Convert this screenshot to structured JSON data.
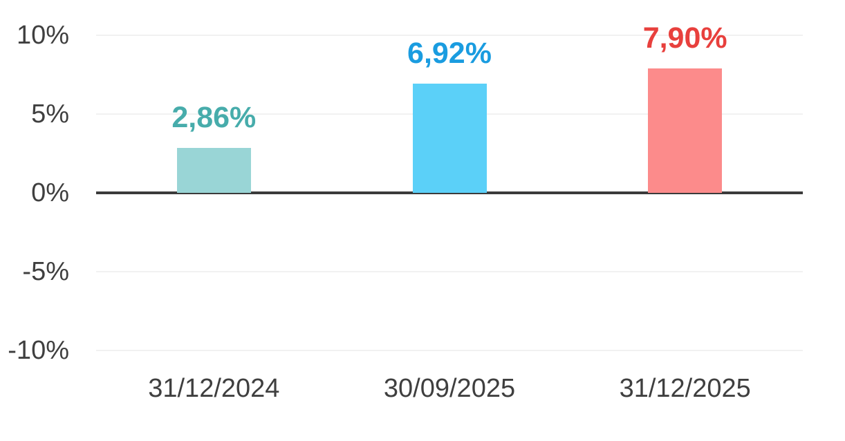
{
  "chart_data": {
    "type": "bar",
    "title": "",
    "xlabel": "",
    "ylabel": "",
    "categories": [
      "31/12/2024",
      "30/09/2025",
      "31/12/2025"
    ],
    "values": [
      2.86,
      6.92,
      7.9
    ],
    "value_labels": [
      "2,86%",
      "6,92%",
      "7,90%"
    ],
    "bar_colors": [
      "#99D5D6",
      "#5BD0F8",
      "#FC8B8B"
    ],
    "value_label_colors": [
      "#47ACAB",
      "#1A9CE0",
      "#E8403D"
    ],
    "ylim": [
      -10,
      10
    ],
    "yticks": [
      10,
      5,
      0,
      -5,
      -10
    ],
    "ytick_labels": [
      "10%",
      "5%",
      "0%",
      "-5%",
      "-10%"
    ],
    "grid": true,
    "legend": false,
    "colors": {
      "background": "#ffffff",
      "axis_line": "#3B3B3B",
      "gridline": "#F1F1F1",
      "tick_text": "#3F3F3F"
    }
  }
}
